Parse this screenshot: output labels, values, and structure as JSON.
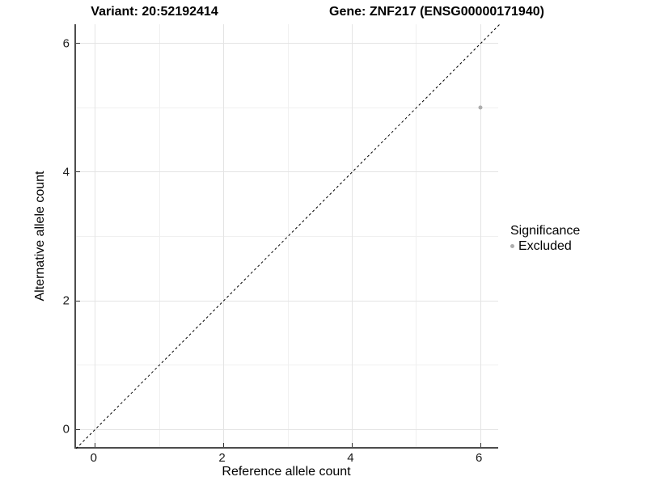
{
  "titles": {
    "variant": "Variant: 20:52192414",
    "gene": "Gene: ZNF217 (ENSG00000171940)"
  },
  "axes": {
    "x": {
      "label": "Reference allele count",
      "major_ticks": [
        0,
        2,
        4,
        6
      ],
      "minor_ticks": [
        1,
        3,
        5
      ]
    },
    "y": {
      "label": "Alternative allele count",
      "major_ticks": [
        0,
        2,
        4,
        6
      ],
      "minor_ticks": [
        1,
        3,
        5
      ]
    }
  },
  "legend": {
    "title": "Significance",
    "items": [
      {
        "label": "Excluded",
        "color": "#adadad"
      }
    ]
  },
  "colors": {
    "background": "#ffffff",
    "axis_line": "#4d4d4d",
    "grid_major": "#e4e4e4",
    "grid_minor": "#f0f0f0",
    "reference_line": "#000000",
    "point": "#adadad"
  },
  "chart_data": {
    "type": "scatter",
    "title": "Variant: 20:52192414   Gene: ZNF217 (ENSG00000171940)",
    "xlabel": "Reference allele count",
    "ylabel": "Alternative allele count",
    "xlim": [
      -0.3,
      6.3
    ],
    "ylim": [
      -0.3,
      6.3
    ],
    "grid": "on",
    "legend_position": "right",
    "series": [
      {
        "name": "Excluded",
        "color": "#adadad",
        "point_radius": 2.5,
        "points": [
          {
            "x": 6,
            "y": 5
          }
        ]
      }
    ],
    "reference_line": {
      "type": "identity",
      "equation": "y = x",
      "style": "dashed",
      "color": "#000000"
    }
  }
}
